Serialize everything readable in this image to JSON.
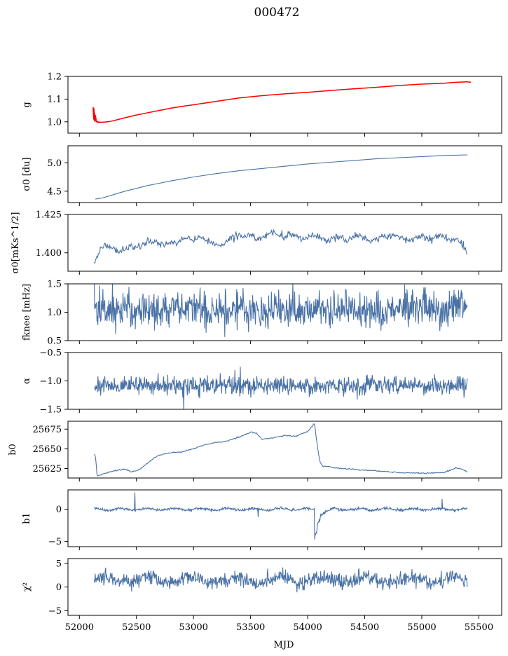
{
  "title": "000472",
  "xlabel": "MJD",
  "xlim": [
    51900,
    55700
  ],
  "xticks": [
    52000,
    52500,
    53000,
    53500,
    54000,
    54500,
    55000,
    55500
  ],
  "colors": {
    "series": "#4a72a6",
    "fit": "#ff0000",
    "axes": "#000000"
  },
  "chart_data": [
    {
      "type": "line",
      "ylabel": "g",
      "ylim": [
        0.95,
        1.2
      ],
      "yticks": [
        "1.0",
        "1.1",
        "1.2"
      ],
      "series": [
        {
          "key": "data",
          "color": "#4a72a6",
          "x": [
            52130,
            52140,
            52170,
            52200,
            52250,
            52300,
            52400,
            52500,
            52600,
            52700,
            52800,
            52900,
            53000,
            53200,
            53400,
            53600,
            53800,
            54000,
            54200,
            54400,
            54600,
            54800,
            55000,
            55200,
            55300,
            55400
          ],
          "values": [
            1.01,
            1.005,
            1.0,
            0.998,
            1.0,
            1.005,
            1.018,
            1.03,
            1.04,
            1.05,
            1.06,
            1.068,
            1.075,
            1.09,
            1.105,
            1.115,
            1.123,
            1.13,
            1.138,
            1.145,
            1.152,
            1.16,
            1.166,
            1.17,
            1.174,
            1.176
          ]
        },
        {
          "key": "fit",
          "color": "#ff0000",
          "x": [
            52120,
            52125,
            52128,
            52131,
            52134,
            52137,
            52140,
            52150,
            52170,
            52200,
            52250,
            52300,
            52400,
            52500,
            52600,
            52700,
            52800,
            52900,
            53000,
            53200,
            53400,
            53600,
            53800,
            54000,
            54200,
            54400,
            54600,
            54800,
            55000,
            55200,
            55300,
            55400,
            55430
          ],
          "values": [
            1.065,
            1.01,
            1.06,
            1.005,
            1.04,
            1.0,
            1.03,
            1.0,
            0.997,
            0.998,
            1.0,
            1.005,
            1.018,
            1.03,
            1.04,
            1.05,
            1.06,
            1.068,
            1.075,
            1.09,
            1.105,
            1.115,
            1.123,
            1.13,
            1.138,
            1.145,
            1.152,
            1.16,
            1.166,
            1.17,
            1.174,
            1.176,
            1.174
          ]
        }
      ]
    },
    {
      "type": "line",
      "ylabel": "σ0 [du]",
      "ylim": [
        4.3,
        5.3
      ],
      "yticks": [
        "4.5",
        "5.0"
      ],
      "series": [
        {
          "key": "data",
          "color": "#4a72a6",
          "x": [
            52140,
            52200,
            52300,
            52400,
            52500,
            52600,
            52700,
            52800,
            53000,
            53200,
            53400,
            53600,
            53800,
            54000,
            54200,
            54400,
            54600,
            54800,
            55000,
            55200,
            55400
          ],
          "values": [
            4.36,
            4.38,
            4.44,
            4.5,
            4.55,
            4.6,
            4.64,
            4.68,
            4.75,
            4.81,
            4.86,
            4.9,
            4.94,
            4.98,
            5.01,
            5.04,
            5.07,
            5.09,
            5.11,
            5.13,
            5.14
          ]
        }
      ]
    },
    {
      "type": "line",
      "ylabel": "σ0[mKs^1/2]",
      "ylim": [
        1.388,
        1.425
      ],
      "yticks": [
        "1.400",
        "1.425"
      ],
      "series": [
        {
          "key": "data",
          "color": "#4a72a6",
          "x": [
            52130,
            52150,
            52180,
            52220,
            52260,
            52300,
            52350,
            52400,
            52450,
            52500,
            52550,
            52600,
            52650,
            52700,
            52750,
            52800,
            52850,
            52900,
            52950,
            53000,
            53050,
            53100,
            53150,
            53200,
            53250,
            53300,
            53350,
            53400,
            53450,
            53500,
            53550,
            53600,
            53650,
            53700,
            53750,
            53800,
            53850,
            53900,
            53950,
            54000,
            54050,
            54100,
            54150,
            54200,
            54250,
            54300,
            54350,
            54400,
            54450,
            54500,
            54550,
            54600,
            54650,
            54700,
            54750,
            54800,
            54850,
            54900,
            54950,
            55000,
            55050,
            55100,
            55150,
            55200,
            55250,
            55300,
            55350,
            55400
          ],
          "values": [
            1.394,
            1.396,
            1.402,
            1.405,
            1.404,
            1.403,
            1.401,
            1.402,
            1.404,
            1.403,
            1.405,
            1.407,
            1.408,
            1.406,
            1.405,
            1.407,
            1.406,
            1.41,
            1.409,
            1.408,
            1.41,
            1.409,
            1.407,
            1.405,
            1.404,
            1.408,
            1.411,
            1.41,
            1.412,
            1.411,
            1.409,
            1.41,
            1.412,
            1.413,
            1.411,
            1.41,
            1.412,
            1.411,
            1.408,
            1.41,
            1.412,
            1.411,
            1.408,
            1.409,
            1.411,
            1.41,
            1.408,
            1.41,
            1.412,
            1.409,
            1.407,
            1.409,
            1.411,
            1.41,
            1.412,
            1.411,
            1.409,
            1.408,
            1.41,
            1.411,
            1.409,
            1.41,
            1.412,
            1.41,
            1.408,
            1.409,
            1.405,
            1.401
          ]
        }
      ]
    },
    {
      "type": "line",
      "ylabel": "fknee [mHz]",
      "ylim": [
        0.5,
        1.5
      ],
      "noise": true,
      "yticks": [
        "0.5",
        "1.0",
        "1.5"
      ],
      "series": [
        {
          "key": "data",
          "color": "#4a72a6",
          "x": [
            52130,
            55400
          ],
          "values": [
            1.05,
            1.05
          ]
        }
      ]
    },
    {
      "type": "line",
      "ylabel": "α",
      "ylim": [
        -1.5,
        -0.5
      ],
      "noise": true,
      "yticks": [
        "−1.5",
        "−1.0",
        "−0.5"
      ],
      "series": [
        {
          "key": "data",
          "color": "#4a72a6",
          "x": [
            52130,
            55400
          ],
          "values": [
            -1.08,
            -1.08
          ]
        }
      ]
    },
    {
      "type": "line",
      "ylabel": "b0",
      "ylim": [
        25613,
        25685
      ],
      "yticks": [
        "25625",
        "25650",
        "25675"
      ],
      "series": [
        {
          "key": "data",
          "color": "#4a72a6",
          "x": [
            52130,
            52140,
            52155,
            52175,
            52200,
            52300,
            52400,
            52450,
            52500,
            52550,
            52600,
            52650,
            52700,
            52800,
            52900,
            53000,
            53100,
            53200,
            53300,
            53400,
            53500,
            53550,
            53600,
            53700,
            53800,
            53900,
            54000,
            54060,
            54070,
            54090,
            54110,
            54130,
            54200,
            54300,
            54400,
            54500,
            54600,
            54800,
            55000,
            55200,
            55300,
            55350,
            55400
          ],
          "values": [
            25643,
            25642,
            25616,
            25616,
            25618,
            25622,
            25624,
            25621,
            25622,
            25626,
            25632,
            25638,
            25642,
            25645,
            25646,
            25650,
            25655,
            25658,
            25660,
            25665,
            25671,
            25670,
            25662,
            25664,
            25667,
            25666,
            25672,
            25682,
            25670,
            25648,
            25633,
            25628,
            25627,
            25625,
            25624,
            25623,
            25622,
            25620,
            25619,
            25620,
            25626,
            25624,
            25621
          ]
        }
      ]
    },
    {
      "type": "line",
      "ylabel": "b1",
      "ylim": [
        -5.8,
        3.0
      ],
      "noise": true,
      "yticks": [
        "−5",
        "0"
      ],
      "series": [
        {
          "key": "data",
          "color": "#4a72a6",
          "x": [
            52130,
            55400
          ],
          "values": [
            0.0,
            0.0
          ]
        }
      ]
    },
    {
      "type": "line",
      "ylabel": "χ²",
      "ylim": [
        -6,
        6
      ],
      "noise": true,
      "yticks": [
        "−5",
        "0",
        "5"
      ],
      "series": [
        {
          "key": "data",
          "color": "#4a72a6",
          "x": [
            52130,
            55400
          ],
          "values": [
            1.5,
            1.5
          ]
        }
      ]
    }
  ]
}
